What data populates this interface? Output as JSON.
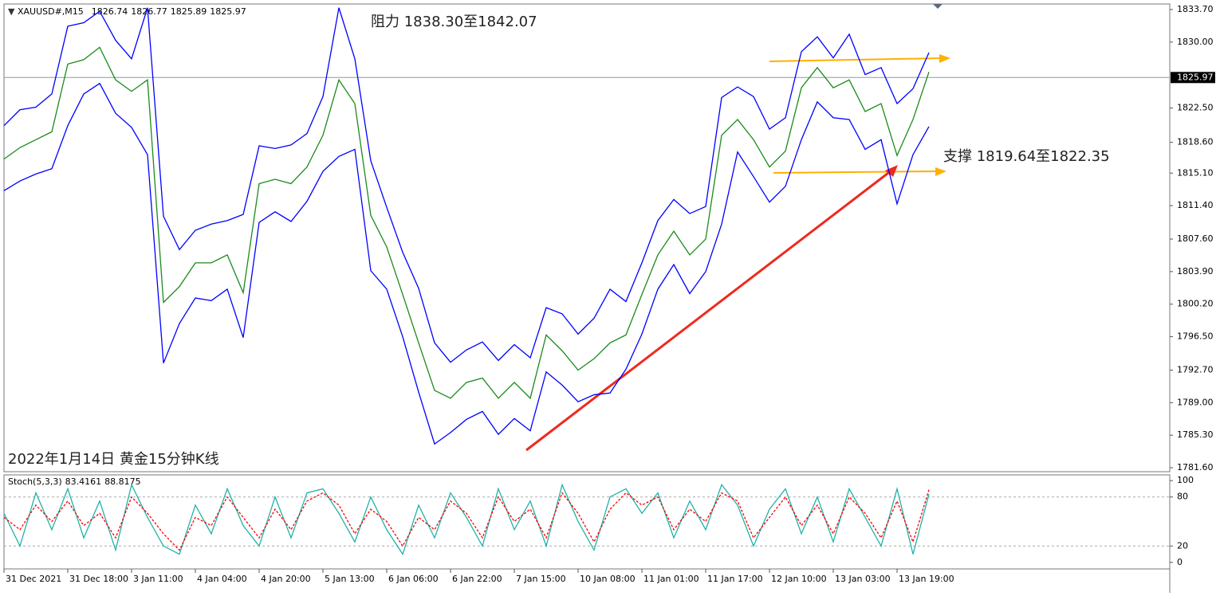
{
  "chart_data": [
    {
      "type": "line",
      "title": "XAUUSD#,M15",
      "ohlc": [
        1826.74,
        1826.77,
        1825.89,
        1825.97
      ],
      "annotations": [
        "阻力 1838.30至1842.07",
        "支撑 1819.64至1822.35",
        "2022年1月14日 黄金15分钟K线"
      ],
      "categories": [
        "31 Dec 2021",
        null,
        null,
        null,
        "31 Dec 18:00",
        null,
        null,
        null,
        "3 Jan 11:00",
        null,
        null,
        null,
        "4 Jan 04:00",
        null,
        null,
        null,
        "4 Jan 20:00",
        null,
        null,
        null,
        "5 Jan 13:00",
        null,
        null,
        null,
        "6 Jan 06:00",
        null,
        null,
        null,
        "6 Jan 22:00",
        null,
        null,
        null,
        "7 Jan 15:00",
        null,
        null,
        null,
        "10 Jan 08:00",
        null,
        null,
        null,
        "11 Jan 01:00",
        null,
        null,
        null,
        "11 Jan 17:00",
        null,
        null,
        null,
        "12 Jan 10:00",
        null,
        null,
        null,
        "13 Jan 03:00",
        null,
        null,
        null,
        "13 Jan 19:00",
        null,
        null
      ],
      "series": [
        {
          "color": "#0000ff",
          "values": [
            1820.5,
            1822.3,
            1822.6,
            1824.1,
            1831.8,
            1832.2,
            1833.5,
            1830.2,
            1828.1,
            1833.9,
            1810.2,
            1806.4,
            1808.6,
            1809.3,
            1809.7,
            1810.4,
            1818.2,
            1817.9,
            1818.3,
            1819.6,
            1823.8,
            1833.9,
            1828.1,
            1816.5,
            1811.2,
            1806.1,
            1802.0,
            1795.8,
            1793.6,
            1795.0,
            1795.9,
            1793.8,
            1795.6,
            1794.1,
            1799.8,
            1799.1,
            1796.8,
            1798.6,
            1801.9,
            1800.5,
            1804.9,
            1809.7,
            1812.1,
            1810.5,
            1811.3,
            1823.7,
            1824.9,
            1823.8,
            1820.1,
            1821.4,
            1828.9,
            1830.6,
            1828.2,
            1830.9,
            1826.3,
            1827.1,
            1823.0,
            1824.7,
            1828.8
          ]
        },
        {
          "color": "#1a8a1a",
          "values": [
            1816.7,
            1818.0,
            1818.9,
            1819.8,
            1827.5,
            1828.0,
            1829.4,
            1825.7,
            1824.4,
            1825.7,
            1800.4,
            1802.2,
            1804.9,
            1804.9,
            1805.8,
            1801.5,
            1813.9,
            1814.4,
            1813.9,
            1815.8,
            1819.4,
            1825.7,
            1823.0,
            1810.3,
            1806.7,
            1801.3,
            1795.8,
            1790.4,
            1789.5,
            1791.3,
            1791.8,
            1789.5,
            1791.3,
            1789.5,
            1796.7,
            1794.9,
            1792.7,
            1794.0,
            1795.8,
            1796.7,
            1801.3,
            1805.8,
            1808.5,
            1805.8,
            1807.6,
            1819.4,
            1821.2,
            1818.9,
            1815.8,
            1817.6,
            1824.8,
            1827.1,
            1824.8,
            1825.7,
            1822.1,
            1823.0,
            1817.1,
            1821.2,
            1826.6
          ]
        },
        {
          "color": "#0000ff",
          "values": [
            1813.1,
            1814.2,
            1815.0,
            1815.6,
            1820.5,
            1824.1,
            1825.3,
            1821.9,
            1820.3,
            1817.2,
            1793.5,
            1798.0,
            1800.9,
            1800.6,
            1801.9,
            1796.4,
            1809.5,
            1810.7,
            1809.6,
            1811.9,
            1815.3,
            1817.0,
            1817.8,
            1804.0,
            1801.9,
            1796.5,
            1790.2,
            1784.3,
            1785.6,
            1787.1,
            1788.0,
            1785.4,
            1787.2,
            1785.8,
            1792.5,
            1791.0,
            1789.1,
            1789.9,
            1790.1,
            1792.8,
            1796.8,
            1801.9,
            1804.7,
            1801.4,
            1803.9,
            1809.3,
            1817.5,
            1814.7,
            1811.8,
            1813.6,
            1818.9,
            1823.2,
            1821.4,
            1821.2,
            1817.8,
            1818.9,
            1811.6,
            1817.2,
            1820.4
          ]
        }
      ],
      "ylim": [
        1781.15,
        1834.33
      ],
      "yticks": [
        {
          "value": 1833.7,
          "label": "1833.70"
        },
        {
          "value": 1830.0,
          "label": "1830.00"
        },
        {
          "value": 1822.5,
          "label": "1822.50"
        },
        {
          "value": 1818.6,
          "label": "1818.60"
        },
        {
          "value": 1815.1,
          "label": "1815.10"
        },
        {
          "value": 1811.4,
          "label": "1811.40"
        },
        {
          "value": 1807.6,
          "label": "1807.60"
        },
        {
          "value": 1803.9,
          "label": "1803.90"
        },
        {
          "value": 1800.2,
          "label": "1800.20"
        },
        {
          "value": 1796.5,
          "label": "1796.50"
        },
        {
          "value": 1792.7,
          "label": "1792.70"
        },
        {
          "value": 1789.0,
          "label": "1789.00"
        },
        {
          "value": 1785.3,
          "label": "1785.30"
        },
        {
          "value": 1781.6,
          "label": "1781.60"
        }
      ],
      "price_line": 1825.97
    },
    {
      "type": "line",
      "title": "Stoch(5,3,3)",
      "last_values": [
        83.4161,
        88.8175
      ],
      "series": [
        {
          "color": "#20b2aa",
          "values": [
            60,
            20,
            85,
            40,
            90,
            30,
            75,
            15,
            95,
            55,
            20,
            10,
            70,
            35,
            90,
            45,
            20,
            80,
            30,
            85,
            90,
            60,
            25,
            80,
            40,
            10,
            70,
            30,
            85,
            55,
            20,
            90,
            40,
            75,
            20,
            95,
            50,
            15,
            80,
            90,
            60,
            85,
            30,
            75,
            40,
            95,
            70,
            20,
            65,
            90,
            35,
            80,
            25,
            90,
            55,
            20,
            90,
            10,
            83.4161
          ]
        },
        {
          "color": "#ff0000",
          "dashed": true,
          "values": [
            55,
            40,
            70,
            50,
            75,
            45,
            60,
            30,
            80,
            60,
            35,
            15,
            55,
            45,
            80,
            55,
            30,
            65,
            40,
            75,
            85,
            70,
            35,
            65,
            50,
            20,
            55,
            40,
            75,
            60,
            30,
            80,
            50,
            65,
            30,
            85,
            60,
            25,
            65,
            85,
            70,
            80,
            40,
            65,
            50,
            85,
            75,
            30,
            55,
            80,
            45,
            70,
            35,
            80,
            60,
            30,
            75,
            25,
            88.8175
          ]
        }
      ],
      "ylim": [
        -8,
        107
      ],
      "yticks": [
        100,
        80,
        20,
        0
      ],
      "levels": [
        80,
        20
      ]
    }
  ]
}
